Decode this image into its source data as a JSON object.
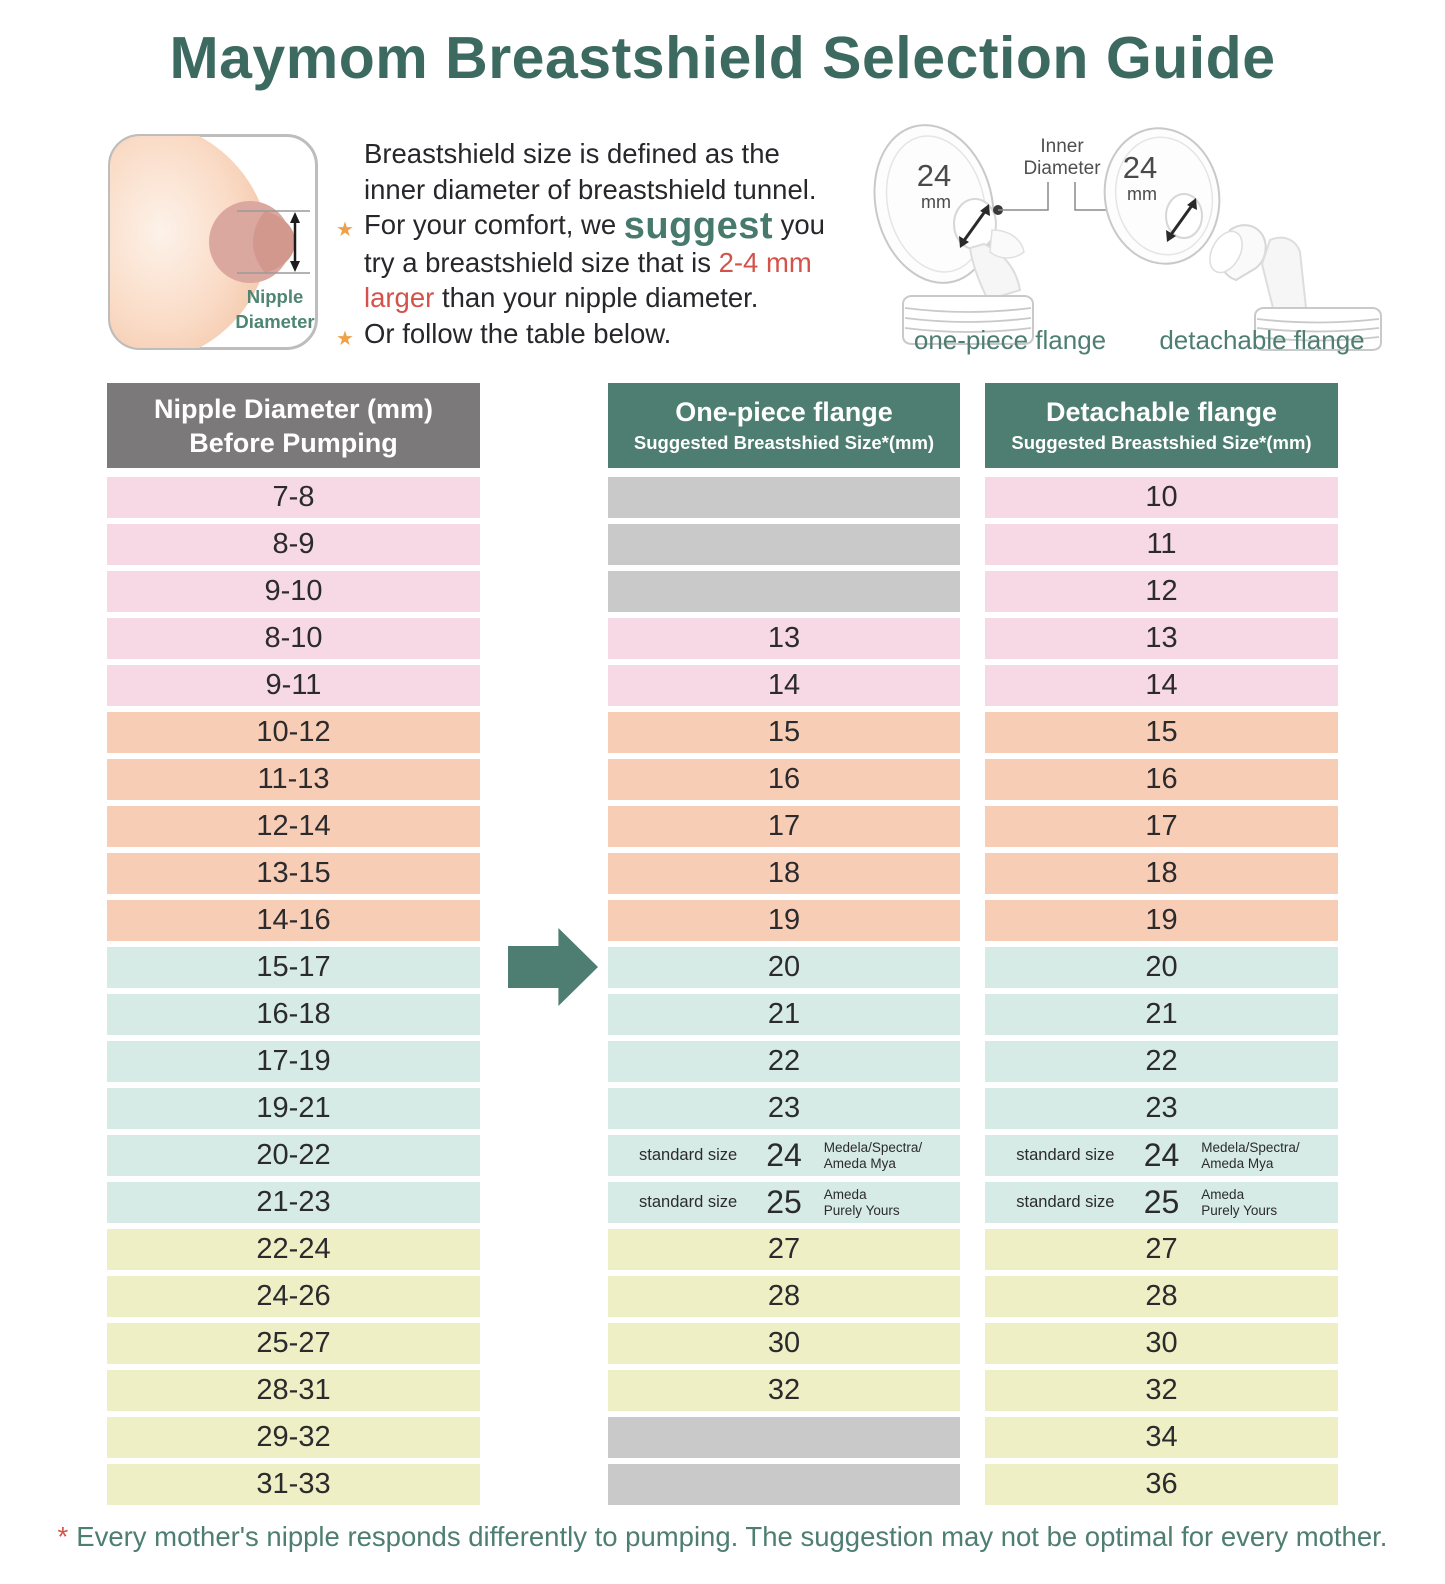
{
  "title": "Maymom Breastshield Selection Guide",
  "colors": {
    "title_teal": "#3d6a60",
    "header_teal": "#4e7e71",
    "header_gray": "#7b797a",
    "row_pink": "#f7d8e5",
    "row_salmon": "#f8cdb6",
    "row_blue": "#d6eae6",
    "row_yellow": "#eeefc5",
    "empty_gray": "#c9c9c9",
    "accent_red": "#d5524b",
    "star_orange": "#efa149"
  },
  "intro": {
    "illustration_label_line1": "Nipple",
    "illustration_label_line2": "Diameter",
    "line1": "Breastshield size is defined as the",
    "line2": "inner diameter of breastshield tunnel.",
    "line3_pre": "For your comfort, we ",
    "line3_highlight": "suggest",
    "line3_post": " you",
    "line4_pre": "try a breastshield size that is ",
    "line4_red": "2-4 mm",
    "line5_red": "larger",
    "line5_post": " than your nipple diameter.",
    "line6": "Or follow the table below."
  },
  "flanges": {
    "size_label": "24",
    "unit_label": "mm",
    "inner_diameter_line1": "Inner",
    "inner_diameter_line2": "Diameter",
    "left_caption": "one-piece flange",
    "right_caption": "detachable flange"
  },
  "table": {
    "col1_header_line1": "Nipple Diameter (mm)",
    "col1_header_line2": "Before Pumping",
    "col2_header_line1": "One-piece flange",
    "col2_header_line2": "Suggested Breastshied Size*(mm)",
    "col3_header_line1": "Detachable flange",
    "col3_header_line2": "Suggested Breastshied Size*(mm)",
    "rows": [
      {
        "range": "7-8",
        "color": "pink",
        "one_piece": null,
        "detachable": "10"
      },
      {
        "range": "8-9",
        "color": "pink",
        "one_piece": null,
        "detachable": "11"
      },
      {
        "range": "9-10",
        "color": "pink",
        "one_piece": null,
        "detachable": "12"
      },
      {
        "range": "8-10",
        "color": "pink",
        "one_piece": "13",
        "detachable": "13"
      },
      {
        "range": "9-11",
        "color": "pink",
        "one_piece": "14",
        "detachable": "14"
      },
      {
        "range": "10-12",
        "color": "salmon",
        "one_piece": "15",
        "detachable": "15"
      },
      {
        "range": "11-13",
        "color": "salmon",
        "one_piece": "16",
        "detachable": "16"
      },
      {
        "range": "12-14",
        "color": "salmon",
        "one_piece": "17",
        "detachable": "17"
      },
      {
        "range": "13-15",
        "color": "salmon",
        "one_piece": "18",
        "detachable": "18"
      },
      {
        "range": "14-16",
        "color": "salmon",
        "one_piece": "19",
        "detachable": "19"
      },
      {
        "range": "15-17",
        "color": "blue",
        "one_piece": "20",
        "detachable": "20"
      },
      {
        "range": "16-18",
        "color": "blue",
        "one_piece": "21",
        "detachable": "21"
      },
      {
        "range": "17-19",
        "color": "blue",
        "one_piece": "22",
        "detachable": "22"
      },
      {
        "range": "19-21",
        "color": "blue",
        "one_piece": "23",
        "detachable": "23"
      },
      {
        "range": "20-22",
        "color": "blue",
        "one_piece": {
          "label": "standard size",
          "size": "24",
          "brands": [
            "Medela/Spectra/",
            "Ameda Mya"
          ]
        },
        "detachable": {
          "label": "standard size",
          "size": "24",
          "brands": [
            "Medela/Spectra/",
            "Ameda Mya"
          ]
        }
      },
      {
        "range": "21-23",
        "color": "blue",
        "one_piece": {
          "label": "standard size",
          "size": "25",
          "brands": [
            "Ameda",
            "Purely Yours"
          ]
        },
        "detachable": {
          "label": "standard size",
          "size": "25",
          "brands": [
            "Ameda",
            "Purely Yours"
          ]
        }
      },
      {
        "range": "22-24",
        "color": "yellow",
        "one_piece": "27",
        "detachable": "27"
      },
      {
        "range": "24-26",
        "color": "yellow",
        "one_piece": "28",
        "detachable": "28"
      },
      {
        "range": "25-27",
        "color": "yellow",
        "one_piece": "30",
        "detachable": "30"
      },
      {
        "range": "28-31",
        "color": "yellow",
        "one_piece": "32",
        "detachable": "32"
      },
      {
        "range": "29-32",
        "color": "yellow",
        "one_piece": null,
        "detachable": "34"
      },
      {
        "range": "31-33",
        "color": "yellow",
        "one_piece": null,
        "detachable": "36"
      }
    ]
  },
  "footnote": {
    "asterisk": "*",
    "text": "Every mother's nipple responds differently to pumping. The suggestion may not be optimal for every mother."
  }
}
